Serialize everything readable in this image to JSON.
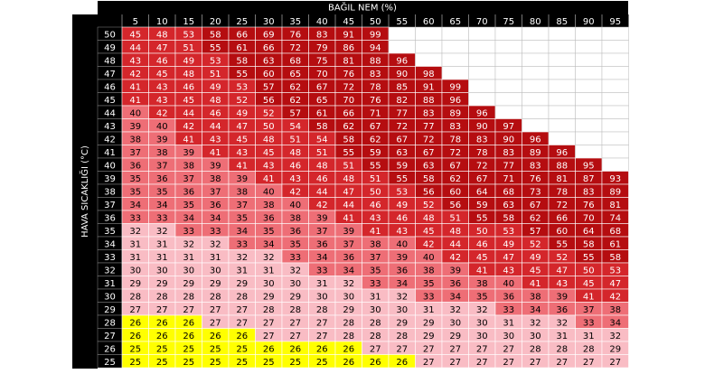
{
  "header": {
    "title": "BAĞIL NEM (%)"
  },
  "side_label": "HAVA SICAKLIĞI (°C)",
  "columns": [
    5,
    10,
    15,
    20,
    25,
    30,
    35,
    40,
    45,
    50,
    55,
    60,
    65,
    70,
    75,
    80,
    85,
    90,
    95
  ],
  "levels": [
    {
      "max": 26,
      "color": "#ffff00",
      "text_color": "#000000"
    },
    {
      "max": 32,
      "color": "#f9bcc4",
      "text_color": "#000000"
    },
    {
      "max": 40,
      "color": "#ee6e76",
      "text_color": "#000000"
    },
    {
      "max": 54,
      "color": "#d4262b",
      "text_color": "#ffffff"
    },
    {
      "max": 99,
      "color": "#b50d10",
      "text_color": "#ffffff"
    }
  ],
  "rows": [
    {
      "temp": 50,
      "values": [
        45,
        48,
        53,
        58,
        66,
        69,
        76,
        83,
        91,
        99
      ]
    },
    {
      "temp": 49,
      "values": [
        44,
        47,
        51,
        55,
        61,
        66,
        72,
        79,
        86,
        94
      ]
    },
    {
      "temp": 48,
      "values": [
        43,
        46,
        49,
        53,
        58,
        63,
        68,
        75,
        81,
        88,
        96
      ]
    },
    {
      "temp": 47,
      "values": [
        42,
        45,
        48,
        51,
        55,
        60,
        65,
        70,
        76,
        83,
        90,
        98
      ]
    },
    {
      "temp": 46,
      "values": [
        41,
        43,
        46,
        49,
        53,
        57,
        62,
        67,
        72,
        78,
        85,
        91,
        99
      ]
    },
    {
      "temp": 45,
      "values": [
        41,
        43,
        45,
        48,
        52,
        56,
        62,
        65,
        70,
        76,
        82,
        88,
        96
      ]
    },
    {
      "temp": 44,
      "values": [
        40,
        42,
        44,
        46,
        49,
        52,
        57,
        61,
        66,
        71,
        77,
        83,
        89,
        96
      ]
    },
    {
      "temp": 43,
      "values": [
        39,
        40,
        42,
        44,
        47,
        50,
        54,
        58,
        62,
        67,
        72,
        77,
        83,
        90,
        97
      ]
    },
    {
      "temp": 42,
      "values": [
        38,
        39,
        41,
        43,
        45,
        48,
        51,
        54,
        58,
        62,
        67,
        72,
        78,
        83,
        90,
        96
      ]
    },
    {
      "temp": 41,
      "values": [
        37,
        38,
        39,
        41,
        43,
        45,
        48,
        51,
        55,
        59,
        63,
        67,
        72,
        78,
        83,
        89,
        96
      ]
    },
    {
      "temp": 40,
      "values": [
        36,
        37,
        38,
        39,
        41,
        43,
        46,
        48,
        51,
        55,
        59,
        63,
        67,
        72,
        77,
        83,
        88,
        95
      ]
    },
    {
      "temp": 39,
      "values": [
        35,
        36,
        37,
        38,
        39,
        41,
        43,
        46,
        48,
        51,
        55,
        58,
        62,
        67,
        71,
        76,
        81,
        87,
        93
      ]
    },
    {
      "temp": 38,
      "values": [
        35,
        35,
        36,
        37,
        38,
        40,
        42,
        44,
        47,
        50,
        53,
        56,
        60,
        64,
        68,
        73,
        78,
        83,
        89
      ]
    },
    {
      "temp": 37,
      "values": [
        34,
        34,
        35,
        36,
        37,
        38,
        40,
        42,
        44,
        46,
        49,
        52,
        56,
        59,
        63,
        67,
        72,
        76,
        81
      ]
    },
    {
      "temp": 36,
      "values": [
        33,
        33,
        34,
        34,
        35,
        36,
        38,
        39,
        41,
        43,
        46,
        48,
        51,
        55,
        58,
        62,
        66,
        70,
        74
      ]
    },
    {
      "temp": 35,
      "values": [
        32,
        32,
        33,
        33,
        34,
        35,
        36,
        37,
        39,
        41,
        43,
        45,
        48,
        50,
        53,
        57,
        60,
        64,
        68
      ]
    },
    {
      "temp": 34,
      "values": [
        31,
        31,
        32,
        32,
        33,
        34,
        35,
        36,
        37,
        38,
        40,
        42,
        44,
        46,
        49,
        52,
        55,
        58,
        61
      ]
    },
    {
      "temp": 33,
      "values": [
        31,
        31,
        31,
        31,
        32,
        32,
        33,
        34,
        36,
        37,
        39,
        40,
        42,
        45,
        47,
        49,
        52,
        55,
        58
      ]
    },
    {
      "temp": 32,
      "values": [
        30,
        30,
        30,
        30,
        31,
        31,
        32,
        33,
        34,
        35,
        36,
        38,
        39,
        41,
        43,
        45,
        47,
        50,
        53
      ]
    },
    {
      "temp": 31,
      "values": [
        29,
        29,
        29,
        29,
        29,
        30,
        30,
        31,
        32,
        33,
        34,
        35,
        36,
        38,
        40,
        41,
        43,
        45,
        47
      ]
    },
    {
      "temp": 30,
      "values": [
        28,
        28,
        28,
        28,
        28,
        29,
        29,
        30,
        30,
        31,
        32,
        33,
        34,
        35,
        36,
        38,
        39,
        41,
        42
      ]
    },
    {
      "temp": 29,
      "values": [
        27,
        27,
        27,
        27,
        27,
        28,
        28,
        28,
        29,
        30,
        30,
        31,
        32,
        32,
        33,
        34,
        36,
        37,
        38
      ]
    },
    {
      "temp": 28,
      "values": [
        26,
        26,
        26,
        27,
        27,
        27,
        27,
        27,
        28,
        28,
        29,
        29,
        30,
        30,
        31,
        32,
        32,
        33,
        34
      ]
    },
    {
      "temp": 27,
      "values": [
        26,
        26,
        26,
        26,
        26,
        27,
        27,
        27,
        28,
        28,
        28,
        29,
        29,
        30,
        30,
        30,
        31,
        31,
        32
      ]
    },
    {
      "temp": 26,
      "values": [
        25,
        25,
        25,
        25,
        25,
        26,
        26,
        26,
        26,
        27,
        27,
        27,
        27,
        27,
        27,
        28,
        28,
        28,
        29
      ]
    },
    {
      "temp": 25,
      "values": [
        25,
        25,
        25,
        25,
        25,
        25,
        25,
        25,
        26,
        26,
        26,
        27,
        27,
        27,
        27,
        27,
        27,
        27,
        27
      ]
    }
  ]
}
